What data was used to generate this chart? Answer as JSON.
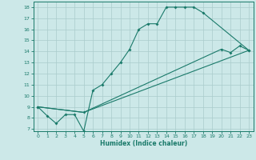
{
  "xlabel": "Humidex (Indice chaleur)",
  "bg_color": "#cce8e8",
  "grid_color": "#aacccc",
  "line_color": "#1a7a6a",
  "xlim": [
    -0.5,
    23.5
  ],
  "ylim": [
    6.8,
    18.5
  ],
  "yticks": [
    7,
    8,
    9,
    10,
    11,
    12,
    13,
    14,
    15,
    16,
    17,
    18
  ],
  "xticks": [
    0,
    1,
    2,
    3,
    4,
    5,
    6,
    7,
    8,
    9,
    10,
    11,
    12,
    13,
    14,
    15,
    16,
    17,
    18,
    19,
    20,
    21,
    22,
    23
  ],
  "series": [
    {
      "x": [
        0,
        1,
        2,
        3,
        4,
        5,
        6,
        7,
        8,
        9,
        10,
        11,
        12,
        13,
        14,
        15,
        16,
        17,
        18,
        23
      ],
      "y": [
        9,
        8.2,
        7.5,
        8.3,
        8.3,
        6.8,
        10.5,
        11,
        12,
        13,
        14.2,
        16,
        16.5,
        16.5,
        18,
        18,
        18,
        18,
        17.5,
        14.1
      ],
      "has_markers": true
    },
    {
      "x": [
        0,
        5,
        23
      ],
      "y": [
        9,
        8.5,
        14.1
      ],
      "has_markers": false
    },
    {
      "x": [
        0,
        5,
        20,
        21,
        22,
        23
      ],
      "y": [
        9,
        8.5,
        14.2,
        13.9,
        14.5,
        14.1
      ],
      "has_markers": true
    }
  ]
}
